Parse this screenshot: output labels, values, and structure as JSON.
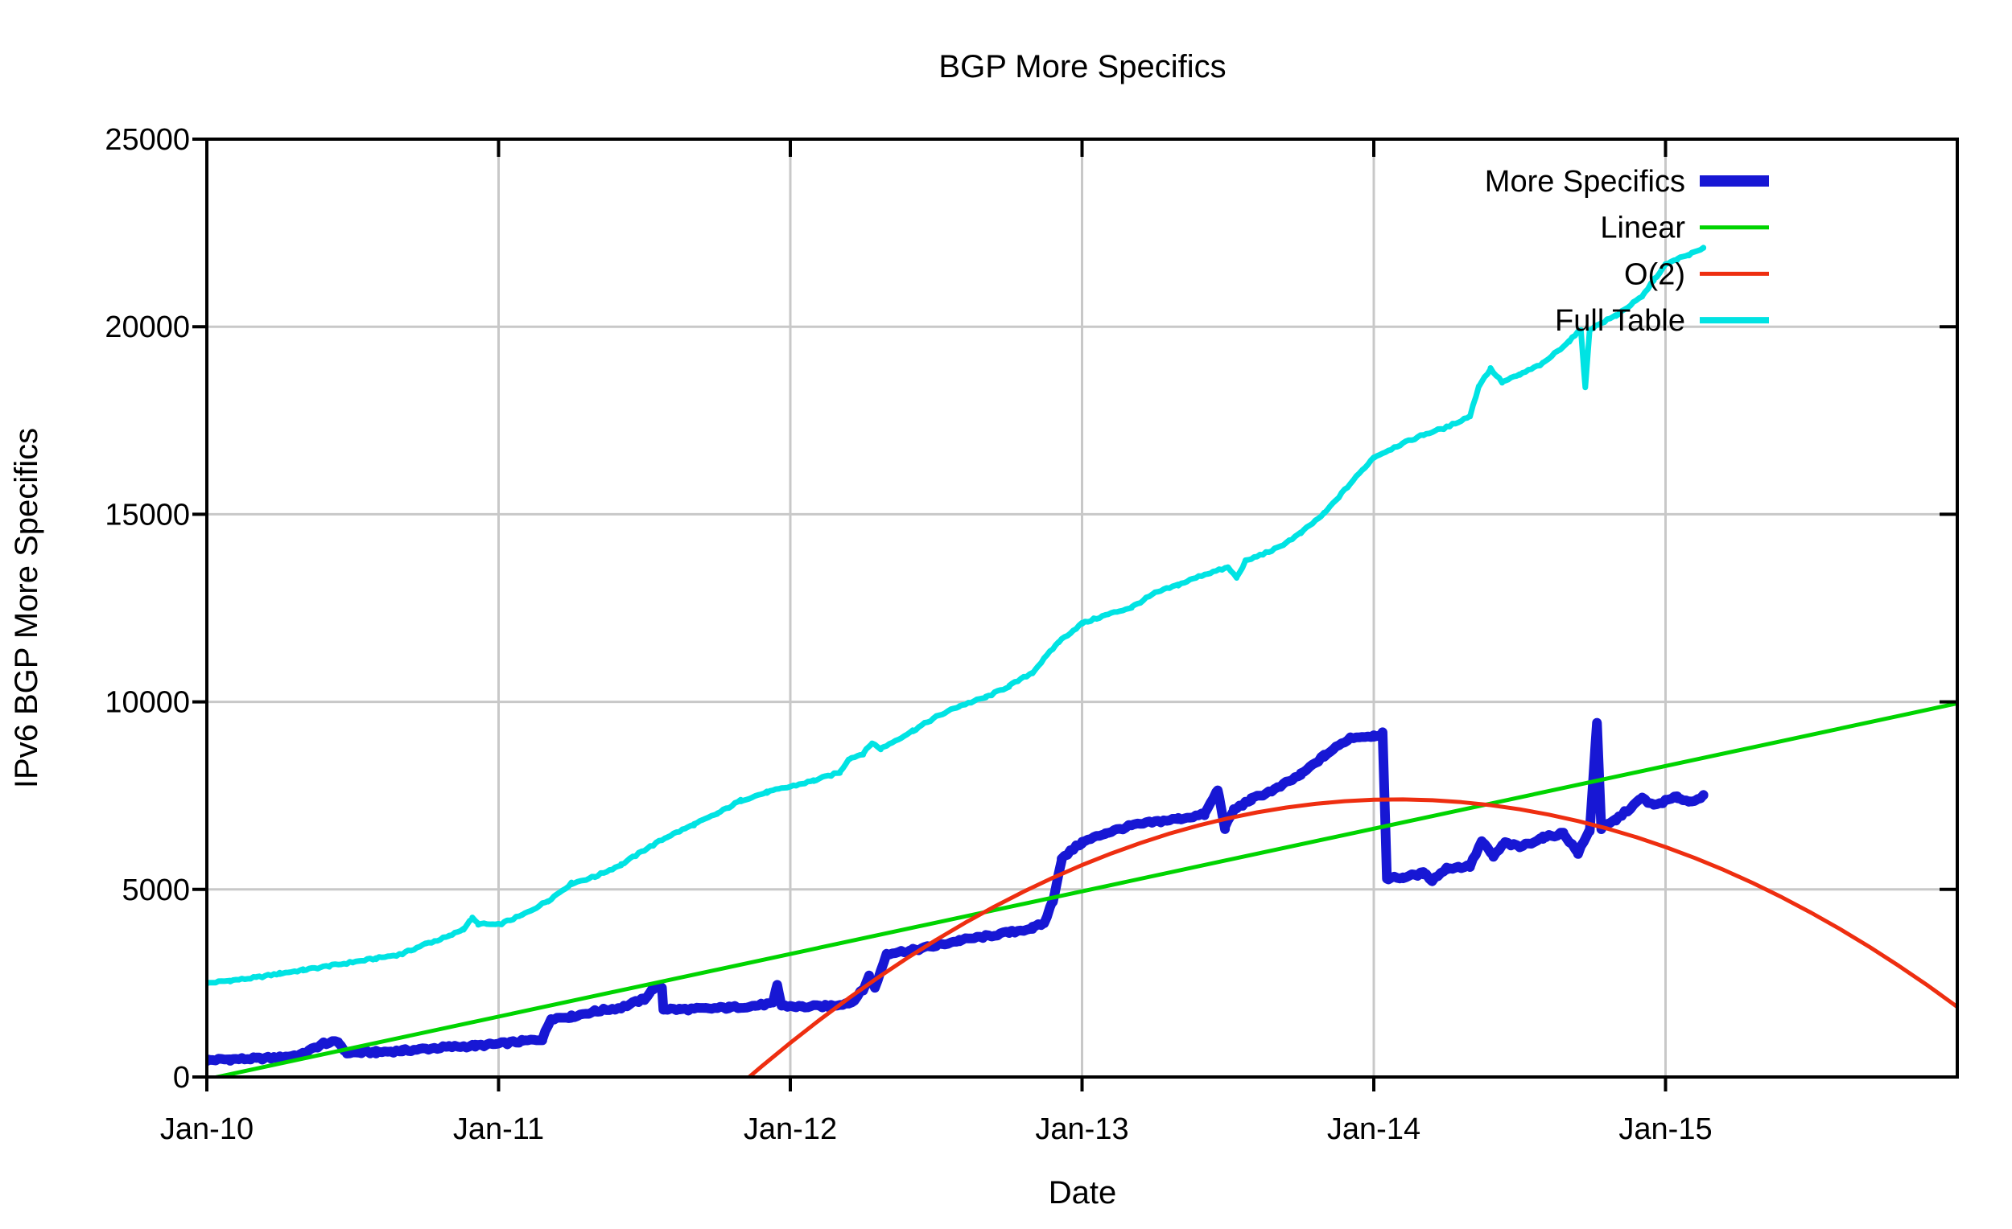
{
  "title": "BGP More Specifics",
  "axes": {
    "x_label": "Date",
    "y_label": "IPv6 BGP More Specifics",
    "x_ticks": [
      {
        "label": "Jan-10",
        "t": 0
      },
      {
        "label": "Jan-11",
        "t": 1
      },
      {
        "label": "Jan-12",
        "t": 2
      },
      {
        "label": "Jan-13",
        "t": 3
      },
      {
        "label": "Jan-14",
        "t": 4
      },
      {
        "label": "Jan-15",
        "t": 5
      }
    ],
    "y_ticks": [
      {
        "label": "0",
        "v": 0
      },
      {
        "label": "5000",
        "v": 5000
      },
      {
        "label": "10000",
        "v": 10000
      },
      {
        "label": "15000",
        "v": 15000
      },
      {
        "label": "20000",
        "v": 20000
      },
      {
        "label": "25000",
        "v": 25000
      }
    ],
    "grid_x_t": [
      1,
      2,
      3,
      4,
      5
    ],
    "grid_y_v": [
      5000,
      10000,
      15000,
      20000
    ]
  },
  "legend": {
    "position": "top-right-inside",
    "entries": [
      {
        "label": "More Specifics",
        "color": "#1717d4",
        "sample_width": 14
      },
      {
        "label": "Linear",
        "color": "#00d400",
        "sample_width": 5
      },
      {
        "label": "O(2)",
        "color": "#ee2e10",
        "sample_width": 5
      },
      {
        "label": "Full Table",
        "color": "#00e3e3",
        "sample_width": 8
      }
    ]
  },
  "colors": {
    "background": "#ffffff",
    "border": "#000000",
    "grid": "#c8c8c8",
    "text": "#000000"
  },
  "chart_data": {
    "type": "line",
    "title": "BGP More Specifics",
    "xlabel": "Date",
    "ylabel": "IPv6 BGP More Specifics",
    "x_unit": "years_since_Jan_2010",
    "x_range": [
      0,
      6.0
    ],
    "ylim": [
      0,
      25000
    ],
    "grid": true,
    "legend_position": "top-right",
    "series": [
      {
        "name": "More Specifics",
        "color": "#1717d4",
        "stroke_width": 12,
        "noise": 40,
        "points": [
          [
            0.0,
            450
          ],
          [
            0.08,
            470
          ],
          [
            0.17,
            490
          ],
          [
            0.25,
            520
          ],
          [
            0.33,
            610
          ],
          [
            0.4,
            900
          ],
          [
            0.45,
            930
          ],
          [
            0.48,
            640
          ],
          [
            0.58,
            660
          ],
          [
            0.67,
            700
          ],
          [
            0.75,
            750
          ],
          [
            0.83,
            800
          ],
          [
            0.92,
            830
          ],
          [
            1.0,
            880
          ],
          [
            1.08,
            950
          ],
          [
            1.15,
            1010
          ],
          [
            1.18,
            1560
          ],
          [
            1.25,
            1610
          ],
          [
            1.33,
            1750
          ],
          [
            1.42,
            1850
          ],
          [
            1.5,
            2080
          ],
          [
            1.53,
            2360
          ],
          [
            1.56,
            2380
          ],
          [
            1.565,
            1815
          ],
          [
            1.62,
            1800
          ],
          [
            1.71,
            1820
          ],
          [
            1.79,
            1850
          ],
          [
            1.88,
            1900
          ],
          [
            1.94,
            1960
          ],
          [
            1.955,
            2450
          ],
          [
            1.97,
            1900
          ],
          [
            2.04,
            1870
          ],
          [
            2.13,
            1890
          ],
          [
            2.21,
            1990
          ],
          [
            2.25,
            2330
          ],
          [
            2.27,
            2690
          ],
          [
            2.29,
            2370
          ],
          [
            2.33,
            3290
          ],
          [
            2.42,
            3380
          ],
          [
            2.5,
            3500
          ],
          [
            2.58,
            3640
          ],
          [
            2.67,
            3750
          ],
          [
            2.75,
            3850
          ],
          [
            2.83,
            3970
          ],
          [
            2.87,
            4100
          ],
          [
            2.9,
            4700
          ],
          [
            2.93,
            5800
          ],
          [
            2.97,
            6080
          ],
          [
            3.0,
            6250
          ],
          [
            3.08,
            6500
          ],
          [
            3.17,
            6700
          ],
          [
            3.25,
            6800
          ],
          [
            3.33,
            6880
          ],
          [
            3.42,
            7000
          ],
          [
            3.465,
            7650
          ],
          [
            3.49,
            6640
          ],
          [
            3.52,
            7120
          ],
          [
            3.58,
            7400
          ],
          [
            3.67,
            7700
          ],
          [
            3.75,
            8060
          ],
          [
            3.83,
            8560
          ],
          [
            3.92,
            9050
          ],
          [
            4.0,
            9100
          ],
          [
            4.03,
            9150
          ],
          [
            4.045,
            5300
          ],
          [
            4.1,
            5320
          ],
          [
            4.17,
            5430
          ],
          [
            4.2,
            5250
          ],
          [
            4.25,
            5560
          ],
          [
            4.33,
            5620
          ],
          [
            4.37,
            6280
          ],
          [
            4.41,
            5880
          ],
          [
            4.45,
            6240
          ],
          [
            4.5,
            6130
          ],
          [
            4.58,
            6380
          ],
          [
            4.65,
            6500
          ],
          [
            4.7,
            5970
          ],
          [
            4.74,
            6570
          ],
          [
            4.765,
            9450
          ],
          [
            4.78,
            6620
          ],
          [
            4.83,
            6860
          ],
          [
            4.92,
            7430
          ],
          [
            4.96,
            7240
          ],
          [
            5.0,
            7360
          ],
          [
            5.04,
            7460
          ],
          [
            5.08,
            7340
          ],
          [
            5.13,
            7480
          ]
        ]
      },
      {
        "name": "Linear",
        "color": "#00d400",
        "stroke_width": 5,
        "noise": 0,
        "points": [
          [
            0.0,
            -60
          ],
          [
            6.0,
            9960
          ]
        ]
      },
      {
        "name": "O(2)",
        "color": "#ee2e10",
        "stroke_width": 5,
        "noise": 0,
        "points": [
          [
            1.86,
            7
          ],
          [
            1.9,
            272
          ],
          [
            2.0,
            910
          ],
          [
            2.1,
            1520
          ],
          [
            2.2,
            2098
          ],
          [
            2.3,
            2647
          ],
          [
            2.4,
            3166
          ],
          [
            2.5,
            3655
          ],
          [
            2.6,
            4114
          ],
          [
            2.7,
            4543
          ],
          [
            2.8,
            4942
          ],
          [
            2.9,
            5311
          ],
          [
            3.0,
            5650
          ],
          [
            3.1,
            5959
          ],
          [
            3.2,
            6238
          ],
          [
            3.3,
            6487
          ],
          [
            3.4,
            6706
          ],
          [
            3.5,
            6895
          ],
          [
            3.6,
            7054
          ],
          [
            3.7,
            7183
          ],
          [
            3.8,
            7282
          ],
          [
            3.9,
            7351
          ],
          [
            4.0,
            7390
          ],
          [
            4.1,
            7399
          ],
          [
            4.2,
            7378
          ],
          [
            4.3,
            7327
          ],
          [
            4.4,
            7246
          ],
          [
            4.5,
            7135
          ],
          [
            4.6,
            6994
          ],
          [
            4.7,
            6823
          ],
          [
            4.8,
            6622
          ],
          [
            4.9,
            6391
          ],
          [
            5.0,
            6130
          ],
          [
            5.1,
            5839
          ],
          [
            5.2,
            5518
          ],
          [
            5.3,
            5167
          ],
          [
            5.4,
            4786
          ],
          [
            5.5,
            4375
          ],
          [
            5.6,
            3934
          ],
          [
            5.7,
            3463
          ],
          [
            5.8,
            2962
          ],
          [
            5.9,
            2431
          ],
          [
            6.0,
            1870
          ]
        ]
      },
      {
        "name": "Full Table",
        "color": "#00e3e3",
        "stroke_width": 7,
        "noise": 28,
        "points": [
          [
            0.0,
            2500
          ],
          [
            0.08,
            2570
          ],
          [
            0.17,
            2650
          ],
          [
            0.25,
            2760
          ],
          [
            0.33,
            2850
          ],
          [
            0.42,
            2960
          ],
          [
            0.5,
            3060
          ],
          [
            0.58,
            3160
          ],
          [
            0.67,
            3280
          ],
          [
            0.75,
            3550
          ],
          [
            0.78,
            3620
          ],
          [
            0.83,
            3750
          ],
          [
            0.88,
            3950
          ],
          [
            0.91,
            4230
          ],
          [
            0.93,
            4080
          ],
          [
            1.0,
            4060
          ],
          [
            1.08,
            4310
          ],
          [
            1.17,
            4700
          ],
          [
            1.25,
            5160
          ],
          [
            1.33,
            5340
          ],
          [
            1.42,
            5660
          ],
          [
            1.5,
            6050
          ],
          [
            1.58,
            6410
          ],
          [
            1.67,
            6730
          ],
          [
            1.75,
            7020
          ],
          [
            1.83,
            7370
          ],
          [
            1.92,
            7590
          ],
          [
            2.0,
            7740
          ],
          [
            2.08,
            7900
          ],
          [
            2.17,
            8120
          ],
          [
            2.2,
            8480
          ],
          [
            2.25,
            8620
          ],
          [
            2.28,
            8900
          ],
          [
            2.31,
            8750
          ],
          [
            2.42,
            9230
          ],
          [
            2.5,
            9600
          ],
          [
            2.58,
            9890
          ],
          [
            2.67,
            10120
          ],
          [
            2.75,
            10420
          ],
          [
            2.83,
            10780
          ],
          [
            2.92,
            11600
          ],
          [
            3.0,
            12090
          ],
          [
            3.08,
            12310
          ],
          [
            3.17,
            12520
          ],
          [
            3.25,
            12900
          ],
          [
            3.33,
            13120
          ],
          [
            3.42,
            13400
          ],
          [
            3.5,
            13580
          ],
          [
            3.53,
            13310
          ],
          [
            3.56,
            13750
          ],
          [
            3.67,
            14100
          ],
          [
            3.75,
            14500
          ],
          [
            3.83,
            15020
          ],
          [
            3.92,
            15820
          ],
          [
            4.0,
            16520
          ],
          [
            4.08,
            16820
          ],
          [
            4.17,
            17120
          ],
          [
            4.25,
            17320
          ],
          [
            4.33,
            17620
          ],
          [
            4.36,
            18420
          ],
          [
            4.4,
            18880
          ],
          [
            4.44,
            18520
          ],
          [
            4.5,
            18720
          ],
          [
            4.58,
            19020
          ],
          [
            4.67,
            19620
          ],
          [
            4.71,
            19920
          ],
          [
            4.725,
            18360
          ],
          [
            4.74,
            19930
          ],
          [
            4.83,
            20300
          ],
          [
            4.92,
            20800
          ],
          [
            4.96,
            21250
          ],
          [
            5.0,
            21650
          ],
          [
            5.04,
            21800
          ],
          [
            5.08,
            21920
          ],
          [
            5.13,
            22080
          ]
        ]
      }
    ]
  }
}
